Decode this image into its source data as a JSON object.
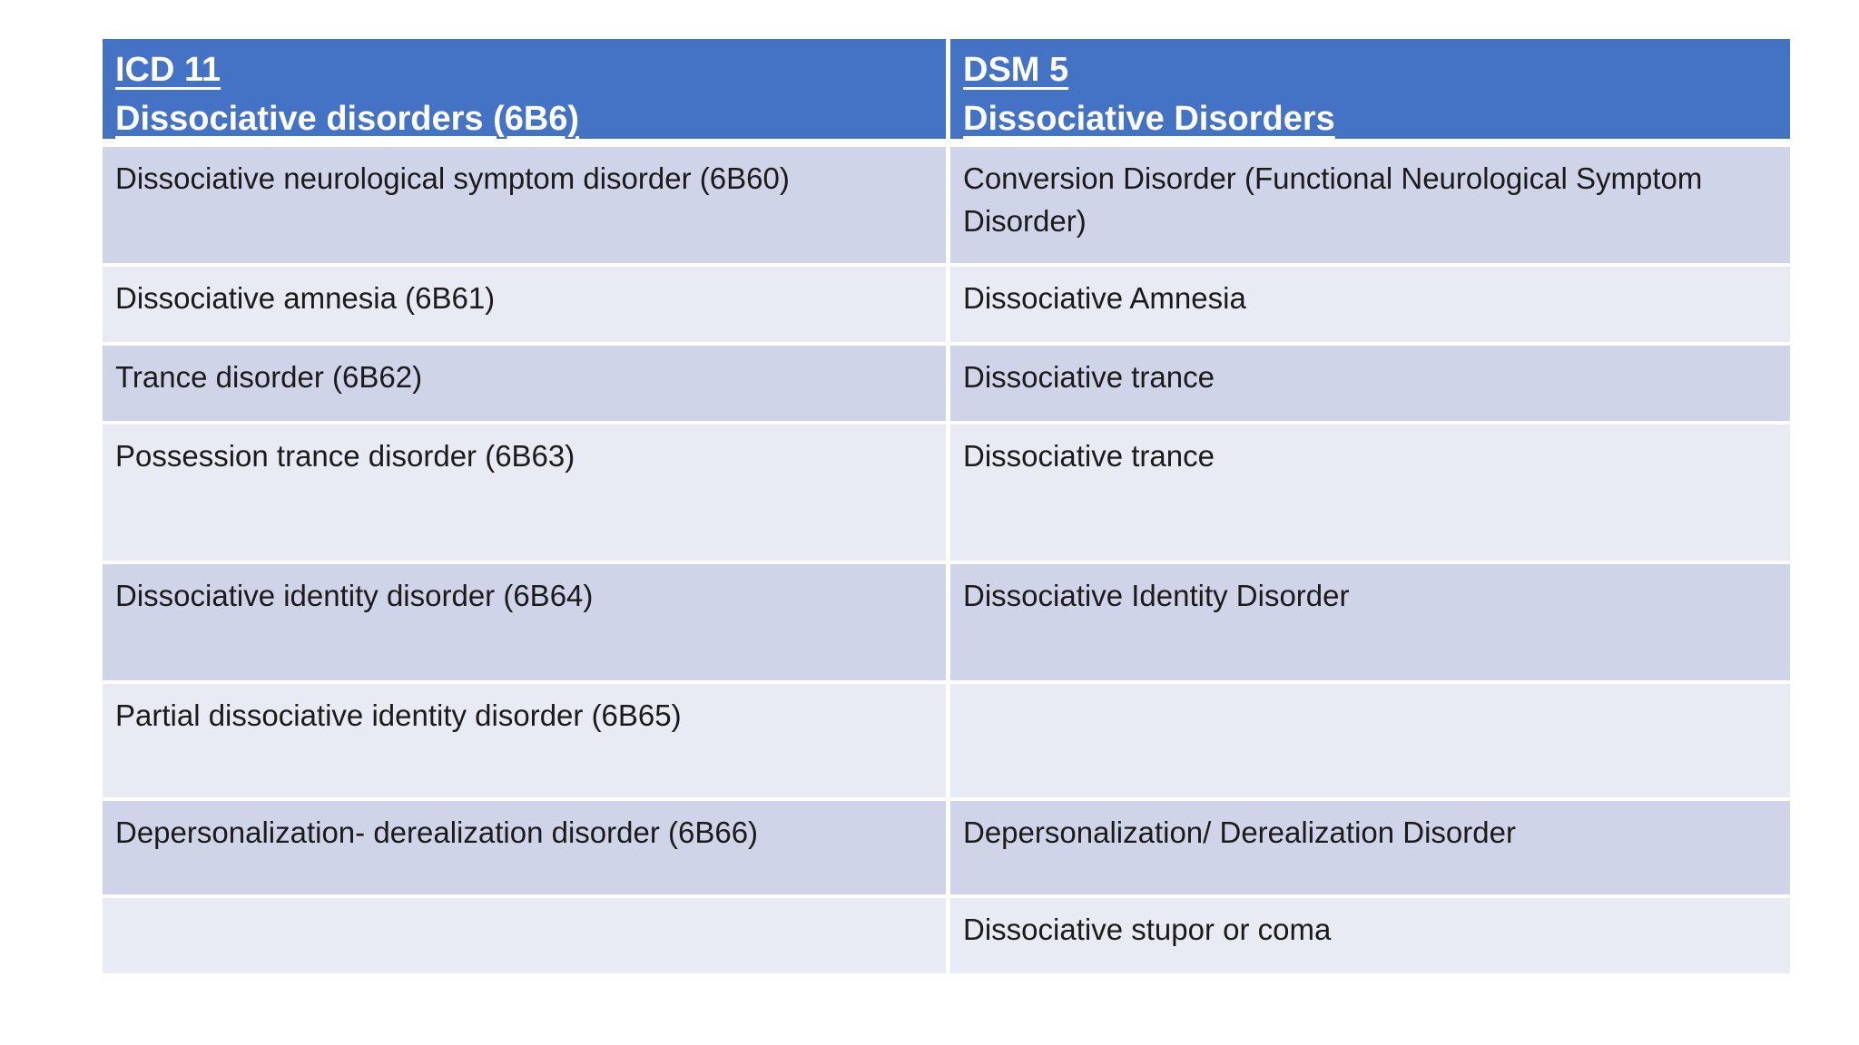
{
  "slide": {
    "colors": {
      "header_bg": "#4472C4",
      "band_dark": "#D0D4E8",
      "band_light": "#E8EAF4",
      "header_text": "#FFFFFF",
      "body_text": "#1B1B1B",
      "page_bg": "#FFFFFF"
    },
    "table": {
      "header": {
        "icd": {
          "line1": "ICD 11",
          "line2": "Dissociative disorders (6B6)"
        },
        "dsm": {
          "line1": "DSM 5",
          "line2": "Dissociative Disorders"
        }
      },
      "rows": [
        {
          "icd": "Dissociative neurological symptom disorder (6B60)",
          "dsm": "Conversion Disorder (Functional Neurological Symptom Disorder)"
        },
        {
          "icd": "Dissociative amnesia (6B61)",
          "dsm": "Dissociative Amnesia"
        },
        {
          "icd": "Trance disorder (6B62)",
          "dsm": "Dissociative trance"
        },
        {
          "icd": "Possession trance disorder (6B63)",
          "dsm": "Dissociative trance"
        },
        {
          "icd": "Dissociative identity disorder (6B64)",
          "dsm": "Dissociative Identity Disorder"
        },
        {
          "icd": "Partial dissociative identity disorder (6B65)",
          "dsm": ""
        },
        {
          "icd": "Depersonalization- derealization disorder (6B66)",
          "dsm": "Depersonalization/ Derealization Disorder"
        },
        {
          "icd": "",
          "dsm": "Dissociative stupor or coma"
        }
      ]
    }
  }
}
